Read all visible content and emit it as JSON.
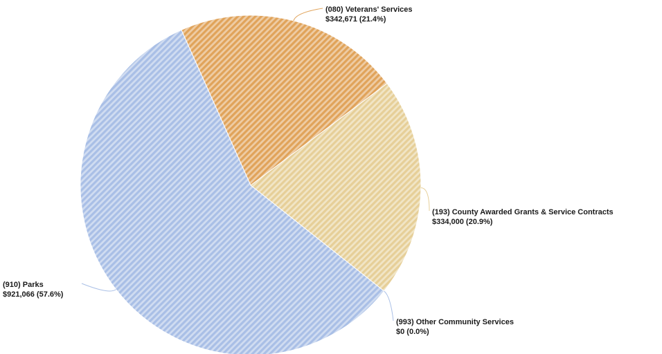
{
  "chart_data": {
    "type": "pie",
    "slices": [
      {
        "name": "(080) Veterans' Services",
        "value": 342671,
        "percent": 21.4,
        "value_label": "$342,671 (21.4%)",
        "color": "#e0a35a"
      },
      {
        "name": "(193) County Awarded Grants & Service Contracts",
        "value": 334000,
        "percent": 20.9,
        "value_label": "$334,000 (20.9%)",
        "color": "#e6cf98"
      },
      {
        "name": "(993) Other Community Services",
        "value": 0,
        "percent": 0.0,
        "value_label": "$0 (0.0%)",
        "color": "#a9bfe6"
      },
      {
        "name": "(910) Parks",
        "value": 921066,
        "percent": 57.6,
        "value_label": "$921,066 (57.6%)",
        "color": "#a9bfe6"
      }
    ],
    "pattern": "diagonal-stripes",
    "start_angle_deg": -24
  }
}
